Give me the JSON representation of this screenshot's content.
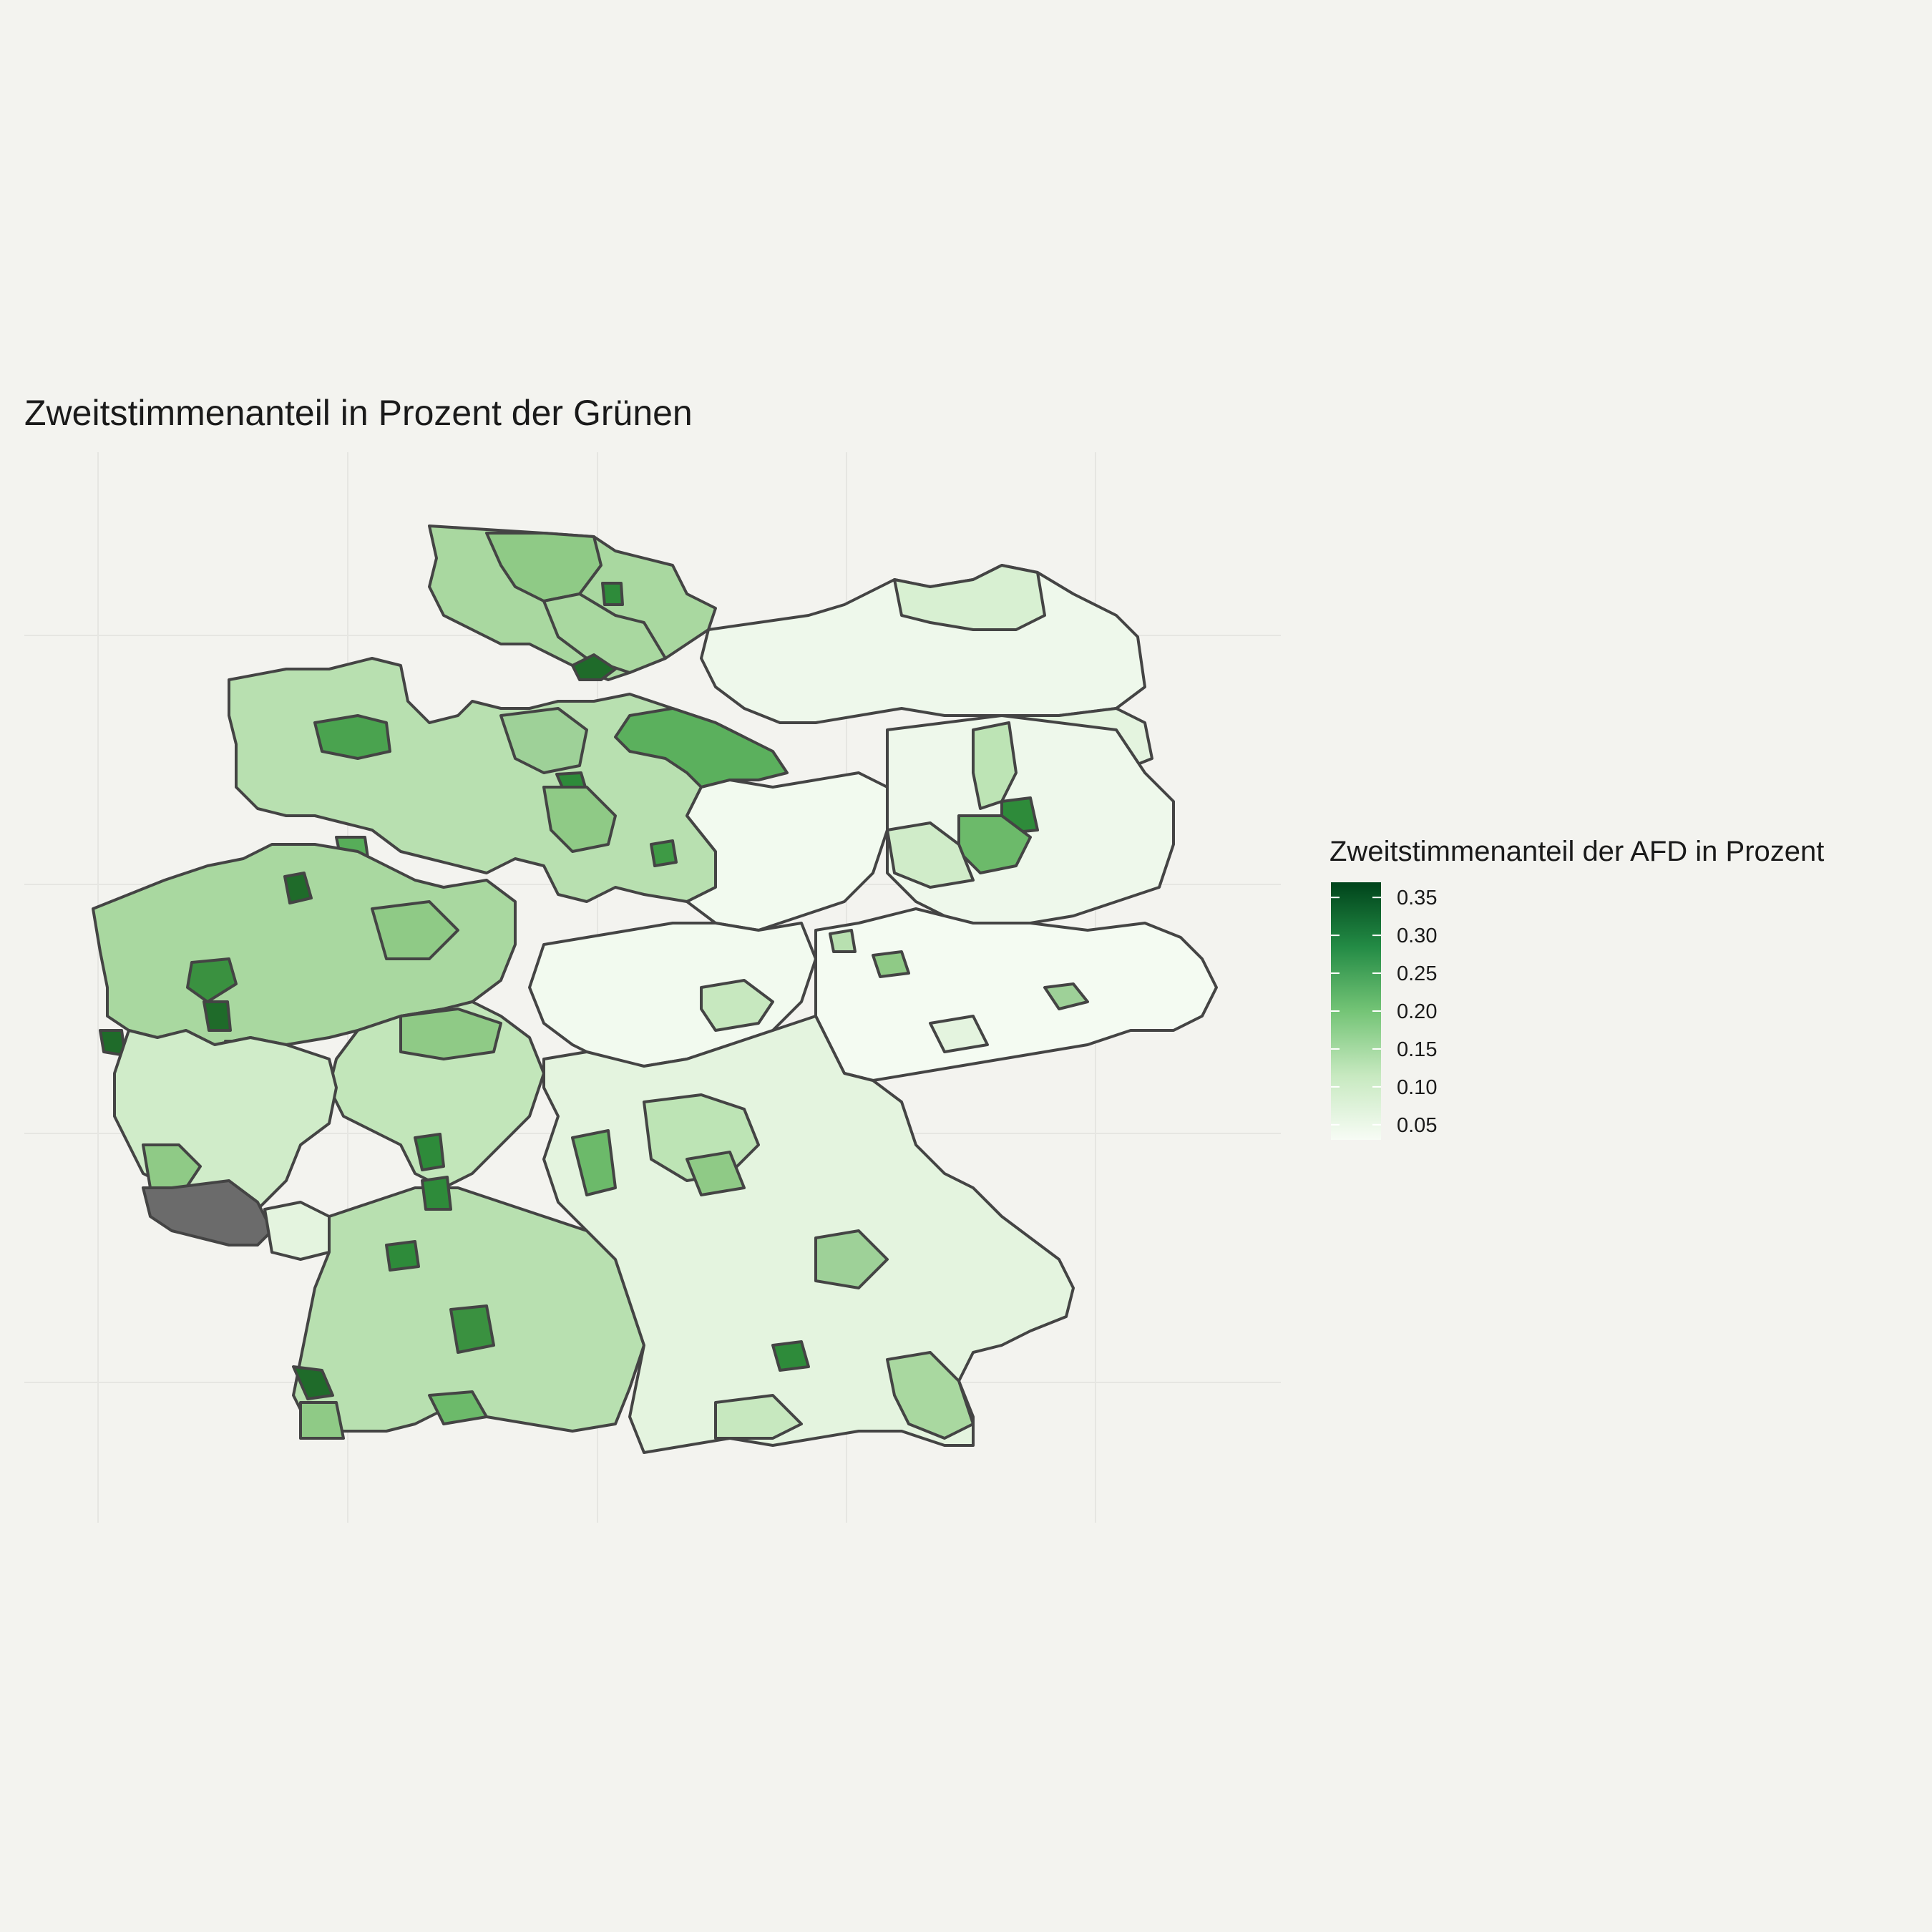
{
  "title": "Zweitstimmenanteil in Prozent der Grünen",
  "legend": {
    "title": "Zweitstimmenanteil der AFD in Prozent",
    "ticks": [
      "0.05",
      "0.10",
      "0.15",
      "0.20",
      "0.25",
      "0.30",
      "0.35"
    ],
    "tick_values": [
      0.05,
      0.1,
      0.15,
      0.2,
      0.25,
      0.3,
      0.35
    ],
    "range": [
      0.03,
      0.37
    ],
    "color_low": "#f7fcf5",
    "color_high": "#00441b",
    "na_color": "#6b6b6b"
  },
  "colors": {
    "background": "#f3f3ef",
    "border": "#444444",
    "grid": "#e6e6e2"
  }
}
